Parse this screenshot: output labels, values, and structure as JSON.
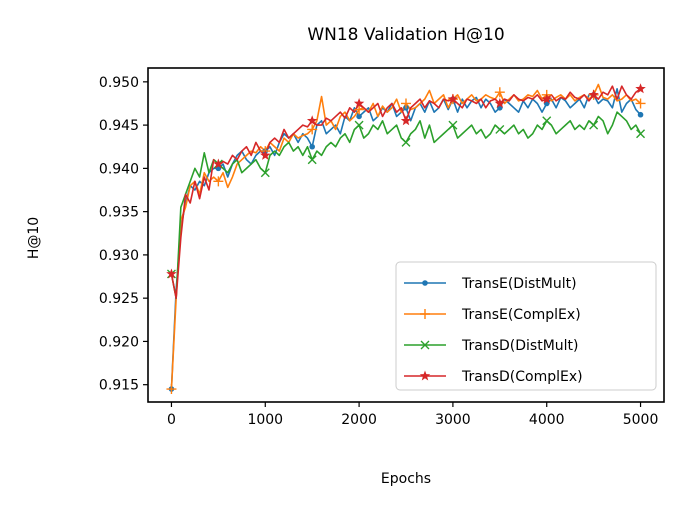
{
  "chart_data": {
    "type": "line",
    "title": "WN18 Validation H@10",
    "xlabel": "Epochs",
    "ylabel": "H@10",
    "xlim": [
      -250,
      5250
    ],
    "ylim": [
      0.913,
      0.9516
    ],
    "xticks": [
      0,
      1000,
      2000,
      3000,
      4000,
      5000
    ],
    "xtick_labels": [
      "0",
      "1000",
      "2000",
      "3000",
      "4000",
      "5000"
    ],
    "yticks": [
      0.915,
      0.92,
      0.925,
      0.93,
      0.935,
      0.94,
      0.945,
      0.95
    ],
    "ytick_labels": [
      "0.915",
      "0.920",
      "0.925",
      "0.930",
      "0.935",
      "0.940",
      "0.945",
      "0.950"
    ],
    "legend_position": "lower-right",
    "marker_every": 500,
    "x": [
      0,
      50,
      100,
      150,
      200,
      250,
      300,
      350,
      400,
      450,
      500,
      550,
      600,
      650,
      700,
      750,
      800,
      850,
      900,
      950,
      1000,
      1050,
      1100,
      1150,
      1200,
      1250,
      1300,
      1350,
      1400,
      1450,
      1500,
      1550,
      1600,
      1650,
      1700,
      1750,
      1800,
      1850,
      1900,
      1950,
      2000,
      2050,
      2100,
      2150,
      2200,
      2250,
      2300,
      2350,
      2400,
      2450,
      2500,
      2550,
      2600,
      2650,
      2700,
      2750,
      2800,
      2850,
      2900,
      2950,
      3000,
      3050,
      3100,
      3150,
      3200,
      3250,
      3300,
      3350,
      3400,
      3450,
      3500,
      3550,
      3600,
      3650,
      3700,
      3750,
      3800,
      3850,
      3900,
      3950,
      4000,
      4050,
      4100,
      4150,
      4200,
      4250,
      4300,
      4350,
      4400,
      4450,
      4500,
      4550,
      4600,
      4650,
      4700,
      4750,
      4800,
      4850,
      4900,
      4950,
      5000
    ],
    "series": [
      {
        "name": "TransE(DistMult)",
        "color": "#1f77b4",
        "marker": "dot",
        "values": [
          0.9145,
          0.926,
          0.933,
          0.936,
          0.938,
          0.9375,
          0.9385,
          0.938,
          0.9395,
          0.94,
          0.94,
          0.9405,
          0.939,
          0.9405,
          0.9415,
          0.942,
          0.941,
          0.9405,
          0.9415,
          0.942,
          0.942,
          0.9425,
          0.9415,
          0.943,
          0.944,
          0.9435,
          0.944,
          0.943,
          0.944,
          0.9435,
          0.9425,
          0.945,
          0.9455,
          0.944,
          0.9445,
          0.945,
          0.944,
          0.946,
          0.9455,
          0.947,
          0.946,
          0.9465,
          0.947,
          0.9455,
          0.946,
          0.947,
          0.9465,
          0.9475,
          0.946,
          0.9465,
          0.947,
          0.9455,
          0.947,
          0.9475,
          0.9465,
          0.9478,
          0.9465,
          0.947,
          0.948,
          0.9468,
          0.948,
          0.9465,
          0.948,
          0.947,
          0.9478,
          0.9482,
          0.947,
          0.948,
          0.9475,
          0.9465,
          0.947,
          0.948,
          0.9475,
          0.947,
          0.9465,
          0.9478,
          0.947,
          0.948,
          0.9475,
          0.9465,
          0.9475,
          0.948,
          0.947,
          0.9482,
          0.9478,
          0.947,
          0.9475,
          0.948,
          0.947,
          0.9485,
          0.9485,
          0.9475,
          0.948,
          0.9478,
          0.947,
          0.9492,
          0.9465,
          0.9475,
          0.948,
          0.9468,
          0.9462
        ]
      },
      {
        "name": "TransE(ComplEx)",
        "color": "#ff7f0e",
        "marker": "plus",
        "values": [
          0.9145,
          0.925,
          0.934,
          0.9355,
          0.938,
          0.9385,
          0.937,
          0.9395,
          0.9385,
          0.939,
          0.9385,
          0.9395,
          0.9378,
          0.939,
          0.9405,
          0.941,
          0.9415,
          0.942,
          0.9418,
          0.9425,
          0.942,
          0.943,
          0.9425,
          0.942,
          0.9435,
          0.943,
          0.944,
          0.9435,
          0.9438,
          0.944,
          0.9445,
          0.9455,
          0.9483,
          0.945,
          0.9455,
          0.9445,
          0.946,
          0.9465,
          0.9455,
          0.946,
          0.9468,
          0.947,
          0.9465,
          0.9475,
          0.946,
          0.9472,
          0.9465,
          0.947,
          0.948,
          0.9465,
          0.9475,
          0.9468,
          0.947,
          0.9475,
          0.948,
          0.949,
          0.9475,
          0.948,
          0.9485,
          0.947,
          0.948,
          0.9485,
          0.9475,
          0.948,
          0.9485,
          0.9478,
          0.948,
          0.9485,
          0.9482,
          0.948,
          0.9488,
          0.9475,
          0.948,
          0.9485,
          0.9478,
          0.948,
          0.9485,
          0.9483,
          0.949,
          0.948,
          0.9485,
          0.9478,
          0.9482,
          0.9485,
          0.948,
          0.9485,
          0.9478,
          0.9482,
          0.9485,
          0.948,
          0.9485,
          0.9497,
          0.9482,
          0.948,
          0.9485,
          0.9478,
          0.948,
          0.9485,
          0.9478,
          0.948,
          0.9475
        ]
      },
      {
        "name": "TransD(DistMult)",
        "color": "#2ca02c",
        "marker": "x",
        "values": [
          0.9278,
          0.925,
          0.9355,
          0.937,
          0.9385,
          0.94,
          0.939,
          0.9418,
          0.9395,
          0.941,
          0.9405,
          0.94,
          0.9395,
          0.9405,
          0.941,
          0.9395,
          0.94,
          0.9405,
          0.941,
          0.94,
          0.9395,
          0.9415,
          0.942,
          0.9415,
          0.9425,
          0.943,
          0.942,
          0.9425,
          0.9415,
          0.9425,
          0.941,
          0.942,
          0.9415,
          0.9425,
          0.943,
          0.9425,
          0.9435,
          0.944,
          0.943,
          0.9445,
          0.945,
          0.9435,
          0.944,
          0.945,
          0.9445,
          0.9455,
          0.944,
          0.9445,
          0.945,
          0.9435,
          0.943,
          0.944,
          0.9445,
          0.9455,
          0.9435,
          0.945,
          0.943,
          0.9435,
          0.944,
          0.9445,
          0.945,
          0.9435,
          0.944,
          0.9445,
          0.945,
          0.944,
          0.9445,
          0.9435,
          0.944,
          0.945,
          0.9445,
          0.944,
          0.9445,
          0.945,
          0.944,
          0.9445,
          0.9435,
          0.944,
          0.945,
          0.9445,
          0.9455,
          0.945,
          0.944,
          0.9445,
          0.945,
          0.9455,
          0.9445,
          0.945,
          0.9445,
          0.9455,
          0.945,
          0.946,
          0.9455,
          0.944,
          0.945,
          0.9465,
          0.946,
          0.9455,
          0.9445,
          0.945,
          0.944
        ]
      },
      {
        "name": "TransD(ComplEx)",
        "color": "#d62728",
        "marker": "star",
        "values": [
          0.9278,
          0.925,
          0.932,
          0.937,
          0.936,
          0.9385,
          0.9365,
          0.939,
          0.9375,
          0.941,
          0.9405,
          0.9408,
          0.9405,
          0.9415,
          0.941,
          0.942,
          0.9425,
          0.9415,
          0.943,
          0.942,
          0.9415,
          0.943,
          0.9435,
          0.943,
          0.9445,
          0.9435,
          0.944,
          0.9445,
          0.945,
          0.9448,
          0.9455,
          0.945,
          0.945,
          0.9458,
          0.9455,
          0.946,
          0.9465,
          0.9458,
          0.947,
          0.9465,
          0.9475,
          0.947,
          0.9465,
          0.947,
          0.9475,
          0.946,
          0.947,
          0.9475,
          0.9465,
          0.947,
          0.9455,
          0.947,
          0.9475,
          0.948,
          0.947,
          0.9478,
          0.9475,
          0.947,
          0.948,
          0.9478,
          0.948,
          0.9475,
          0.947,
          0.948,
          0.9478,
          0.9475,
          0.948,
          0.947,
          0.9478,
          0.948,
          0.9475,
          0.948,
          0.9478,
          0.9485,
          0.948,
          0.9478,
          0.9482,
          0.948,
          0.9485,
          0.9478,
          0.948,
          0.9485,
          0.9478,
          0.9482,
          0.948,
          0.9488,
          0.9482,
          0.948,
          0.9485,
          0.9478,
          0.9485,
          0.948,
          0.9488,
          0.9485,
          0.9495,
          0.948,
          0.9495,
          0.9485,
          0.948,
          0.9488,
          0.9492
        ]
      }
    ]
  }
}
